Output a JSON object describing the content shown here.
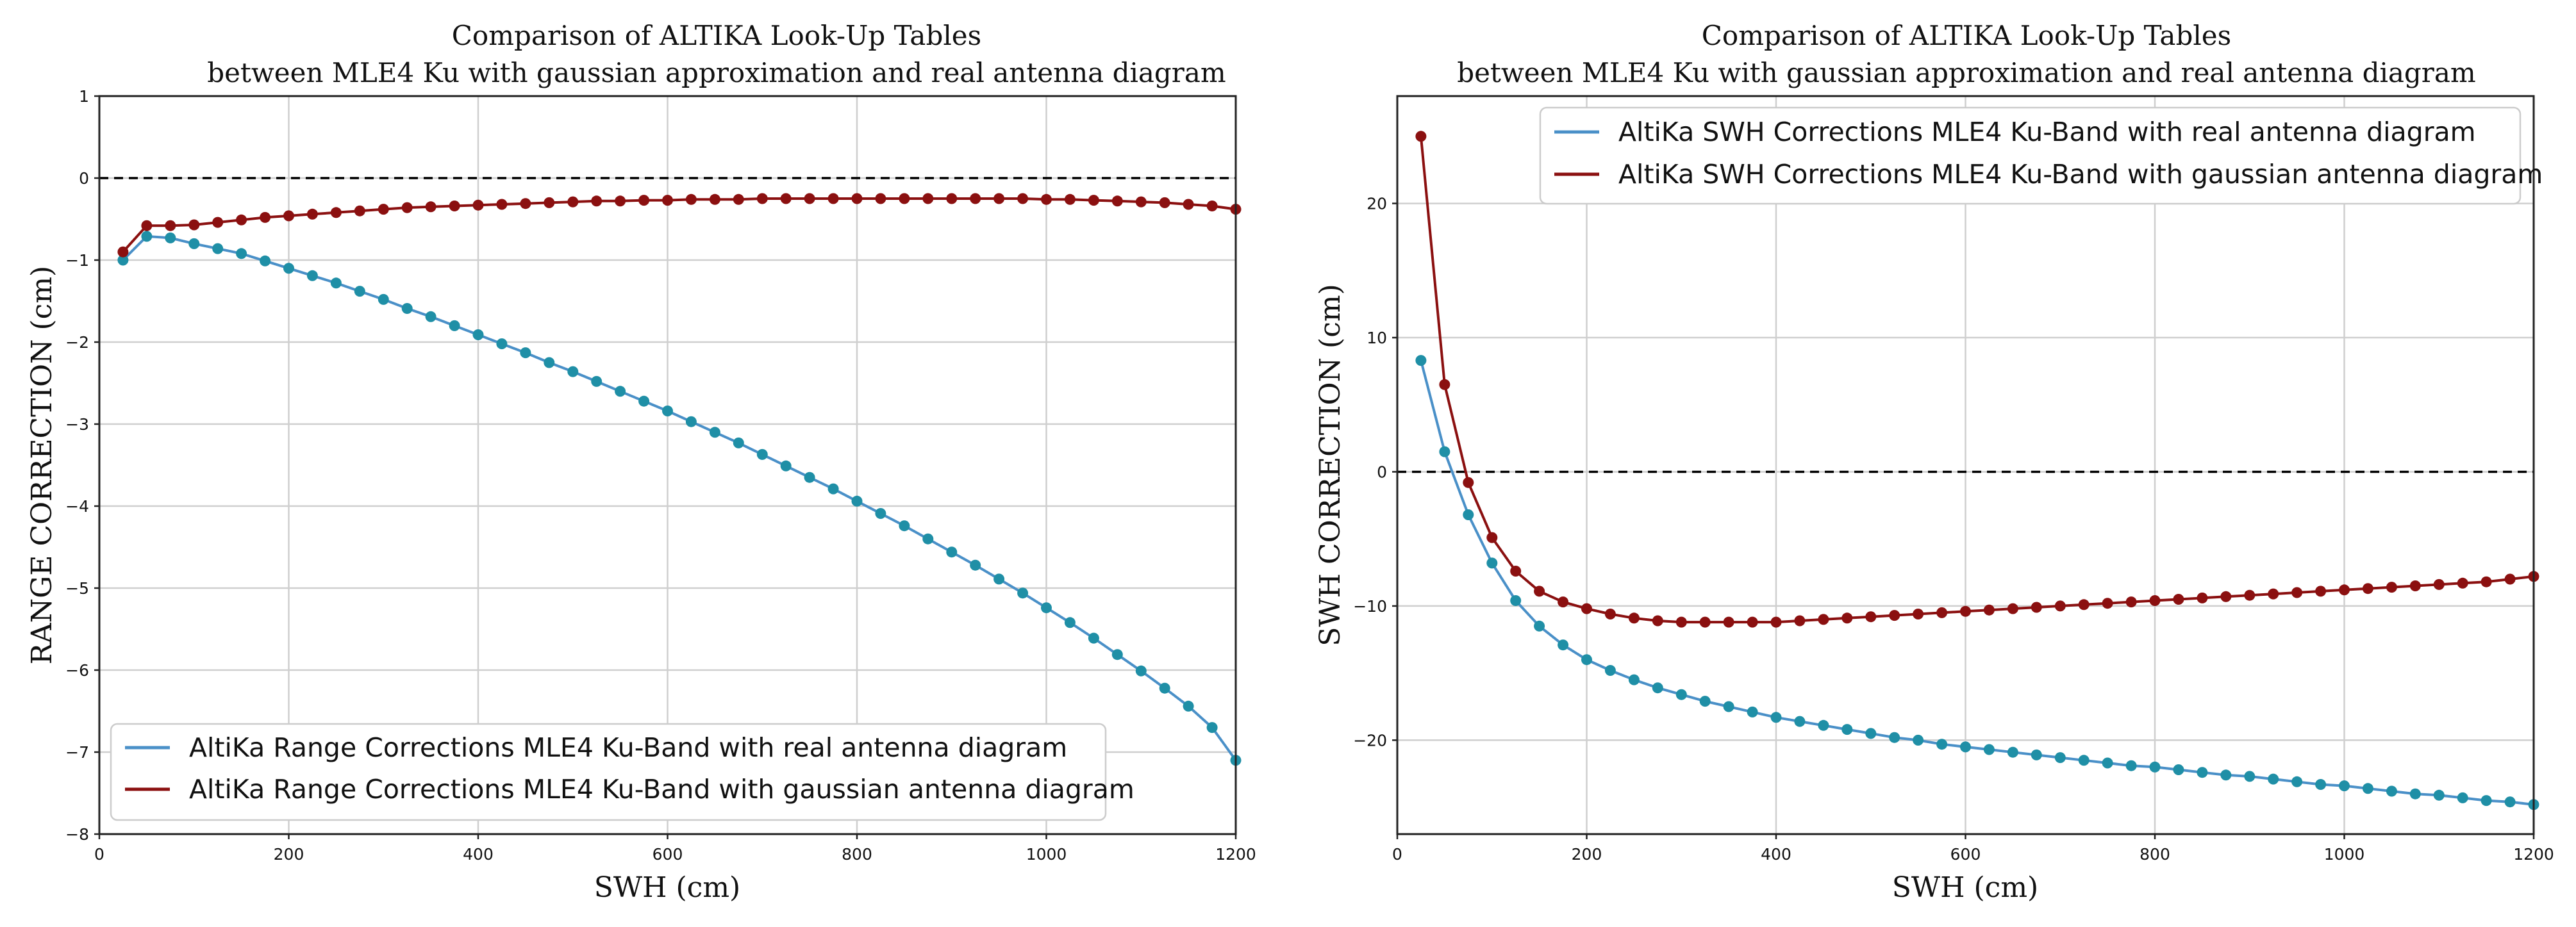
{
  "chart_data": [
    {
      "type": "line",
      "title": [
        "Comparison of ALTIKA Look-Up Tables",
        "between MLE4 Ku with gaussian approximation and real antenna diagram"
      ],
      "xlabel": "SWH (cm)",
      "ylabel": "RANGE CORRECTION (cm)",
      "xlim": [
        0,
        1200
      ],
      "ylim": [
        -8,
        1
      ],
      "xticks": [
        0,
        200,
        400,
        600,
        800,
        1000,
        1200
      ],
      "yticks": [
        1,
        0,
        -1,
        -2,
        -3,
        -4,
        -5,
        -6,
        -7,
        -8
      ],
      "legend_position": "lower-left",
      "reference_line": 0,
      "series": [
        {
          "name": "AltiKa Range Corrections MLE4 Ku-Band with real antenna diagram",
          "color": "#1f8fa6",
          "line_color": "#4a90c8",
          "x": [
            25,
            50,
            75,
            100,
            125,
            150,
            175,
            200,
            225,
            250,
            275,
            300,
            325,
            350,
            375,
            400,
            425,
            450,
            475,
            500,
            525,
            550,
            575,
            600,
            625,
            650,
            675,
            700,
            725,
            750,
            775,
            800,
            825,
            850,
            875,
            900,
            925,
            950,
            975,
            1000,
            1025,
            1050,
            1075,
            1100,
            1125,
            1150,
            1175,
            1200
          ],
          "values": [
            -1.0,
            -0.71,
            -0.73,
            -0.8,
            -0.86,
            -0.92,
            -1.01,
            -1.1,
            -1.19,
            -1.28,
            -1.38,
            -1.48,
            -1.59,
            -1.69,
            -1.8,
            -1.91,
            -2.02,
            -2.13,
            -2.25,
            -2.36,
            -2.48,
            -2.6,
            -2.72,
            -2.84,
            -2.97,
            -3.1,
            -3.23,
            -3.37,
            -3.51,
            -3.65,
            -3.79,
            -3.94,
            -4.09,
            -4.24,
            -4.4,
            -4.56,
            -4.72,
            -4.89,
            -5.06,
            -5.24,
            -5.42,
            -5.61,
            -5.81,
            -6.01,
            -6.22,
            -6.44,
            -6.7,
            -7.1
          ]
        },
        {
          "name": "AltiKa Range Corrections MLE4 Ku-Band with gaussian antenna diagram",
          "color": "#8b1010",
          "line_color": "#8b1010",
          "x": [
            25,
            50,
            75,
            100,
            125,
            150,
            175,
            200,
            225,
            250,
            275,
            300,
            325,
            350,
            375,
            400,
            425,
            450,
            475,
            500,
            525,
            550,
            575,
            600,
            625,
            650,
            675,
            700,
            725,
            750,
            775,
            800,
            825,
            850,
            875,
            900,
            925,
            950,
            975,
            1000,
            1025,
            1050,
            1075,
            1100,
            1125,
            1150,
            1175,
            1200
          ],
          "values": [
            -0.9,
            -0.58,
            -0.58,
            -0.57,
            -0.54,
            -0.51,
            -0.48,
            -0.46,
            -0.44,
            -0.42,
            -0.4,
            -0.38,
            -0.36,
            -0.35,
            -0.34,
            -0.33,
            -0.32,
            -0.31,
            -0.3,
            -0.29,
            -0.28,
            -0.28,
            -0.27,
            -0.27,
            -0.26,
            -0.26,
            -0.26,
            -0.25,
            -0.25,
            -0.25,
            -0.25,
            -0.25,
            -0.25,
            -0.25,
            -0.25,
            -0.25,
            -0.25,
            -0.25,
            -0.25,
            -0.26,
            -0.26,
            -0.27,
            -0.28,
            -0.29,
            -0.3,
            -0.32,
            -0.34,
            -0.38
          ]
        }
      ]
    },
    {
      "type": "line",
      "title": [
        "Comparison of ALTIKA Look-Up Tables",
        "between MLE4 Ku with gaussian approximation and real antenna diagram"
      ],
      "xlabel": "SWH (cm)",
      "ylabel": "SWH CORRECTION (cm)",
      "xlim": [
        0,
        1200
      ],
      "ylim": [
        -27,
        28
      ],
      "xticks": [
        0,
        200,
        400,
        600,
        800,
        1000,
        1200
      ],
      "yticks": [
        20,
        10,
        0,
        -10,
        -20
      ],
      "legend_position": "top-right",
      "reference_line": 0,
      "series": [
        {
          "name": "AltiKa SWH Corrections MLE4 Ku-Band with real antenna diagram",
          "color": "#1f8fa6",
          "line_color": "#4a90c8",
          "x": [
            25,
            50,
            75,
            100,
            125,
            150,
            175,
            200,
            225,
            250,
            275,
            300,
            325,
            350,
            375,
            400,
            425,
            450,
            475,
            500,
            525,
            550,
            575,
            600,
            625,
            650,
            675,
            700,
            725,
            750,
            775,
            800,
            825,
            850,
            875,
            900,
            925,
            950,
            975,
            1000,
            1025,
            1050,
            1075,
            1100,
            1125,
            1150,
            1175,
            1200
          ],
          "values": [
            8.3,
            1.5,
            -3.2,
            -6.8,
            -9.6,
            -11.5,
            -12.9,
            -14.0,
            -14.8,
            -15.5,
            -16.1,
            -16.6,
            -17.1,
            -17.5,
            -17.9,
            -18.3,
            -18.6,
            -18.9,
            -19.2,
            -19.5,
            -19.8,
            -20.0,
            -20.3,
            -20.5,
            -20.7,
            -20.9,
            -21.1,
            -21.3,
            -21.5,
            -21.7,
            -21.9,
            -22.0,
            -22.2,
            -22.4,
            -22.6,
            -22.7,
            -22.9,
            -23.1,
            -23.3,
            -23.4,
            -23.6,
            -23.8,
            -24.0,
            -24.1,
            -24.3,
            -24.5,
            -24.6,
            -24.8
          ]
        },
        {
          "name": "AltiKa SWH Corrections MLE4 Ku-Band with gaussian antenna diagram",
          "color": "#8b1010",
          "line_color": "#8b1010",
          "x": [
            25,
            50,
            75,
            100,
            125,
            150,
            175,
            200,
            225,
            250,
            275,
            300,
            325,
            350,
            375,
            400,
            425,
            450,
            475,
            500,
            525,
            550,
            575,
            600,
            625,
            650,
            675,
            700,
            725,
            750,
            775,
            800,
            825,
            850,
            875,
            900,
            925,
            950,
            975,
            1000,
            1025,
            1050,
            1075,
            1100,
            1125,
            1150,
            1175,
            1200
          ],
          "values": [
            25.0,
            6.5,
            -0.8,
            -4.9,
            -7.4,
            -8.9,
            -9.7,
            -10.2,
            -10.6,
            -10.9,
            -11.1,
            -11.2,
            -11.2,
            -11.2,
            -11.2,
            -11.2,
            -11.1,
            -11.0,
            -10.9,
            -10.8,
            -10.7,
            -10.6,
            -10.5,
            -10.4,
            -10.3,
            -10.2,
            -10.1,
            -10.0,
            -9.9,
            -9.8,
            -9.7,
            -9.6,
            -9.5,
            -9.4,
            -9.3,
            -9.2,
            -9.1,
            -9.0,
            -8.9,
            -8.8,
            -8.7,
            -8.6,
            -8.5,
            -8.4,
            -8.3,
            -8.2,
            -8.0,
            -7.8
          ]
        }
      ]
    }
  ]
}
